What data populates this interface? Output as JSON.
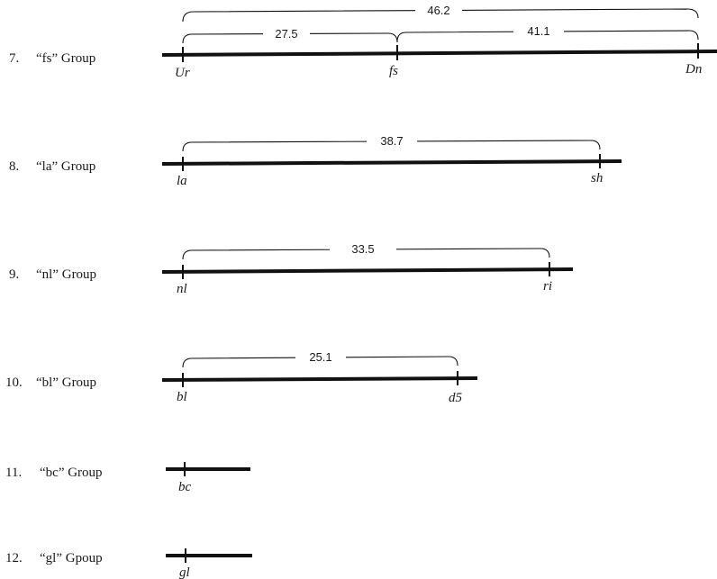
{
  "groups": [
    {
      "number": "7.",
      "name": "“fs” Group",
      "genes": [
        "Ur",
        "fs",
        "Dn"
      ],
      "distances": [
        "46.2",
        "27.5",
        "41.1"
      ]
    },
    {
      "number": "8.",
      "name": "“la” Group",
      "genes": [
        "la",
        "sh"
      ],
      "distances": [
        "38.7"
      ]
    },
    {
      "number": "9.",
      "name": "“nl” Group",
      "genes": [
        "nl",
        "ri"
      ],
      "distances": [
        "33.5"
      ]
    },
    {
      "number": "10.",
      "name": "“bl” Group",
      "genes": [
        "bl",
        "d5"
      ],
      "distances": [
        "25.1"
      ]
    },
    {
      "number": "11.",
      "name": "“bc” Group",
      "genes": [
        "bc"
      ],
      "distances": []
    },
    {
      "number": "12.",
      "name": "“gl” Gpoup",
      "genes": [
        "gl"
      ],
      "distances": []
    }
  ]
}
